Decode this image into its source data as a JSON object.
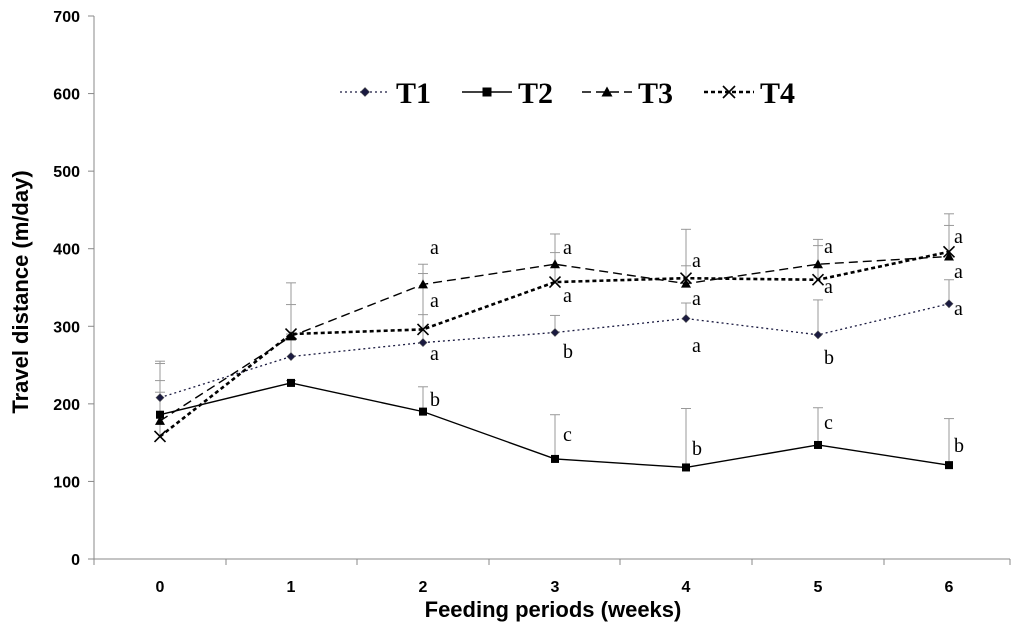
{
  "chart_data": {
    "type": "line",
    "title": "",
    "xlabel": "Feeding periods (weeks)",
    "ylabel": "Travel distance  (m/day)",
    "x": [
      0,
      1,
      2,
      3,
      4,
      5,
      6
    ],
    "x_tick_labels": [
      "0",
      "1",
      "2",
      "3",
      "4",
      "5",
      "6"
    ],
    "ylim": [
      0,
      700
    ],
    "y_ticks": [
      0,
      100,
      200,
      300,
      400,
      500,
      600,
      700
    ],
    "y_tick_labels": [
      "0",
      "100",
      "200",
      "300",
      "400",
      "500",
      "600",
      "700"
    ],
    "grid": false,
    "legend_position": "top-center",
    "series": [
      {
        "name": "T1",
        "marker": "diamond",
        "line_style": "dotted",
        "color": "#1a1a40",
        "values": [
          208,
          261,
          279,
          292,
          310,
          289,
          329
        ],
        "error_upper": [
          255,
          290,
          315,
          314,
          330,
          334,
          360
        ],
        "letters": [
          "",
          "",
          "a",
          "b",
          "a",
          "b",
          "a"
        ]
      },
      {
        "name": "T2",
        "marker": "square",
        "line_style": "solid",
        "color": "#000000",
        "values": [
          186,
          227,
          190,
          129,
          118,
          147,
          121
        ],
        "error_upper": [
          230,
          230,
          222,
          186,
          194,
          195,
          181
        ],
        "letters": [
          "",
          "",
          "b",
          "c",
          "b",
          "c",
          "b"
        ]
      },
      {
        "name": "T3",
        "marker": "triangle",
        "line_style": "dashed",
        "color": "#000000",
        "values": [
          178,
          287,
          354,
          380,
          355,
          380,
          390
        ],
        "error_upper": [
          215,
          356,
          380,
          419,
          425,
          412,
          445
        ],
        "letters": [
          "",
          "",
          "a",
          "a",
          "a",
          "a",
          "a"
        ]
      },
      {
        "name": "T4",
        "marker": "x",
        "line_style": "short-dash",
        "color": "#000000",
        "values": [
          158,
          290,
          296,
          357,
          362,
          360,
          396
        ],
        "error_upper": [
          252,
          328,
          368,
          395,
          378,
          404,
          430
        ],
        "letters": [
          "",
          "",
          "a",
          "a",
          "a",
          "a",
          "a"
        ]
      }
    ]
  }
}
